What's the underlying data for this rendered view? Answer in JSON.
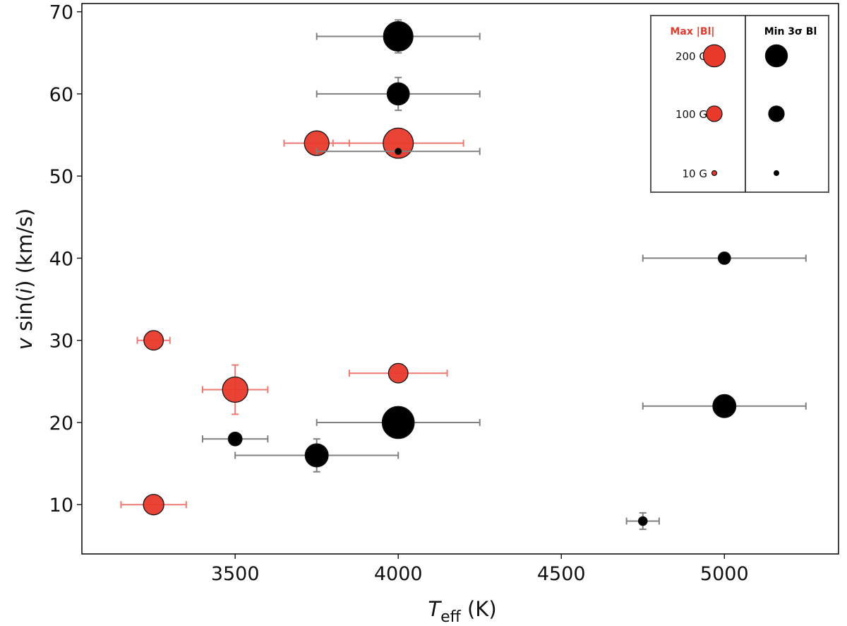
{
  "chart_data": {
    "type": "scatter",
    "xlabel_main": "T",
    "xlabel_sub": "eff",
    "xlabel_unit": " (K)",
    "ylabel_v": "v",
    "ylabel_sin": " sin(",
    "ylabel_i": "i",
    "ylabel_rest": ") (km/s)",
    "xlim": [
      3030,
      5350
    ],
    "ylim": [
      4,
      71
    ],
    "xticks": [
      3500,
      4000,
      4500,
      5000
    ],
    "yticks": [
      10,
      20,
      30,
      40,
      50,
      60,
      70
    ],
    "xtick_labels": [
      "3500",
      "4000",
      "4500",
      "5000"
    ],
    "ytick_labels": [
      "10",
      "20",
      "30",
      "40",
      "50",
      "60",
      "70"
    ],
    "series": [
      {
        "name": "Max |Bl|",
        "color": "#e8392b",
        "errorbar_color": "#f07a72",
        "points": [
          {
            "x": 3250,
            "y": 30,
            "b": 100,
            "xerr": 50,
            "yerr": 0
          },
          {
            "x": 3250,
            "y": 10,
            "b": 110,
            "xerr": 100,
            "yerr": 0
          },
          {
            "x": 3500,
            "y": 24,
            "b": 170,
            "xerr": 100,
            "yerr": 3
          },
          {
            "x": 3750,
            "y": 54,
            "b": 160,
            "xerr": 100,
            "yerr": 0
          },
          {
            "x": 4000,
            "y": 54,
            "b": 240,
            "xerr": 200,
            "yerr": 0
          },
          {
            "x": 4000,
            "y": 26,
            "b": 100,
            "xerr": 150,
            "yerr": 0
          }
        ]
      },
      {
        "name": "Min 3σ Bl",
        "color": "#000000",
        "errorbar_color": "#808080",
        "points": [
          {
            "x": 4000,
            "y": 67,
            "b": 230,
            "xerr": 250,
            "yerr": 2
          },
          {
            "x": 4000,
            "y": 60,
            "b": 130,
            "xerr": 250,
            "yerr": 2
          },
          {
            "x": 4000,
            "y": 53,
            "b": 10,
            "xerr": 250,
            "yerr": 0
          },
          {
            "x": 5000,
            "y": 40,
            "b": 40,
            "xerr": 250,
            "yerr": 0
          },
          {
            "x": 5000,
            "y": 22,
            "b": 140,
            "xerr": 250,
            "yerr": 0
          },
          {
            "x": 4000,
            "y": 20,
            "b": 270,
            "xerr": 250,
            "yerr": 0
          },
          {
            "x": 3500,
            "y": 18,
            "b": 50,
            "xerr": 100,
            "yerr": 0
          },
          {
            "x": 3750,
            "y": 16,
            "b": 140,
            "xerr": 250,
            "yerr": 2
          },
          {
            "x": 4750,
            "y": 8,
            "b": 20,
            "xerr": 50,
            "yerr": 1
          }
        ]
      }
    ],
    "legend": {
      "placement": "top-right",
      "col1_title": "Max |Bl|",
      "col2_title": "Min 3σ Bl",
      "col1_color": "#e8392b",
      "col2_color": "#000000",
      "rows": [
        {
          "label": "200 G",
          "b": 200
        },
        {
          "label": "100 G",
          "b": 100
        },
        {
          "label": "10 G",
          "b": 10
        }
      ]
    }
  }
}
